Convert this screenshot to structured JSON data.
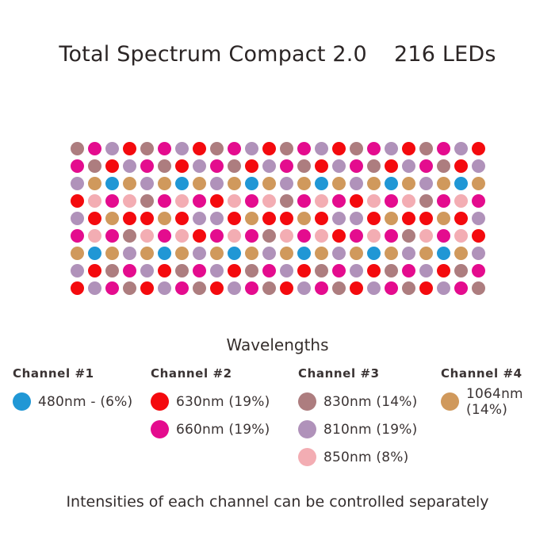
{
  "header": {
    "title": "Total Spectrum Compact 2.0",
    "led_count": "216 LEDs"
  },
  "colors": {
    "480": "#2097d5",
    "630": "#f40a0e",
    "660": "#e40c8e",
    "810": "#b092ba",
    "830": "#ad7d7f",
    "850": "#f3adb3",
    "1064": "#d0995c"
  },
  "panel": {
    "columns": 24,
    "rows_count": 9,
    "total_leds": 216,
    "rows": [
      [
        "830",
        "660",
        "810",
        "630",
        "830",
        "660",
        "810",
        "630",
        "830",
        "660",
        "810",
        "630",
        "830",
        "660",
        "810",
        "630",
        "830",
        "660",
        "810",
        "630",
        "830",
        "660",
        "810",
        "630"
      ],
      [
        "660",
        "830",
        "630",
        "810",
        "660",
        "830",
        "630",
        "810",
        "660",
        "830",
        "630",
        "810",
        "660",
        "830",
        "630",
        "810",
        "660",
        "830",
        "630",
        "810",
        "660",
        "830",
        "630",
        "810"
      ],
      [
        "810",
        "1064",
        "480",
        "1064",
        "810",
        "1064",
        "480",
        "1064",
        "810",
        "1064",
        "480",
        "1064",
        "810",
        "1064",
        "480",
        "1064",
        "810",
        "1064",
        "480",
        "1064",
        "810",
        "1064",
        "480",
        "1064"
      ],
      [
        "630",
        "850",
        "660",
        "850",
        "830",
        "660",
        "850",
        "660",
        "630",
        "850",
        "660",
        "850",
        "830",
        "660",
        "850",
        "660",
        "630",
        "850",
        "660",
        "850",
        "830",
        "660",
        "850",
        "660"
      ],
      [
        "810",
        "630",
        "1064",
        "630",
        "630",
        "1064",
        "630",
        "810",
        "810",
        "630",
        "1064",
        "630",
        "630",
        "1064",
        "630",
        "810",
        "810",
        "630",
        "1064",
        "630",
        "630",
        "1064",
        "630",
        "810"
      ],
      [
        "660",
        "850",
        "660",
        "830",
        "850",
        "660",
        "850",
        "630",
        "660",
        "850",
        "660",
        "830",
        "850",
        "660",
        "850",
        "630",
        "660",
        "850",
        "660",
        "830",
        "850",
        "660",
        "850",
        "630"
      ],
      [
        "1064",
        "480",
        "1064",
        "810",
        "1064",
        "480",
        "1064",
        "810",
        "1064",
        "480",
        "1064",
        "810",
        "1064",
        "480",
        "1064",
        "810",
        "1064",
        "480",
        "1064",
        "810",
        "1064",
        "480",
        "1064",
        "810"
      ],
      [
        "810",
        "630",
        "830",
        "660",
        "810",
        "630",
        "830",
        "660",
        "810",
        "630",
        "830",
        "660",
        "810",
        "630",
        "830",
        "660",
        "810",
        "630",
        "830",
        "660",
        "810",
        "630",
        "830",
        "660"
      ],
      [
        "630",
        "810",
        "660",
        "830",
        "630",
        "810",
        "660",
        "830",
        "630",
        "810",
        "660",
        "830",
        "630",
        "810",
        "660",
        "830",
        "630",
        "810",
        "660",
        "830",
        "630",
        "810",
        "660",
        "830"
      ]
    ]
  },
  "legend": {
    "title": "Wavelengths",
    "channels": [
      {
        "name": "Channel #1",
        "items": [
          {
            "wavelength": "480",
            "label": "480nm - (6%)"
          }
        ]
      },
      {
        "name": "Channel #2",
        "items": [
          {
            "wavelength": "630",
            "label": "630nm (19%)"
          },
          {
            "wavelength": "660",
            "label": "660nm (19%)"
          }
        ]
      },
      {
        "name": "Channel #3",
        "items": [
          {
            "wavelength": "830",
            "label": "830nm (14%)"
          },
          {
            "wavelength": "810",
            "label": "810nm (19%)"
          },
          {
            "wavelength": "850",
            "label": "850nm (8%)"
          }
        ]
      },
      {
        "name": "Channel #4",
        "items": [
          {
            "wavelength": "1064",
            "label": "1064nm (14%)"
          }
        ]
      }
    ]
  },
  "footer": {
    "note": "Intensities of each channel can be controlled separately"
  }
}
